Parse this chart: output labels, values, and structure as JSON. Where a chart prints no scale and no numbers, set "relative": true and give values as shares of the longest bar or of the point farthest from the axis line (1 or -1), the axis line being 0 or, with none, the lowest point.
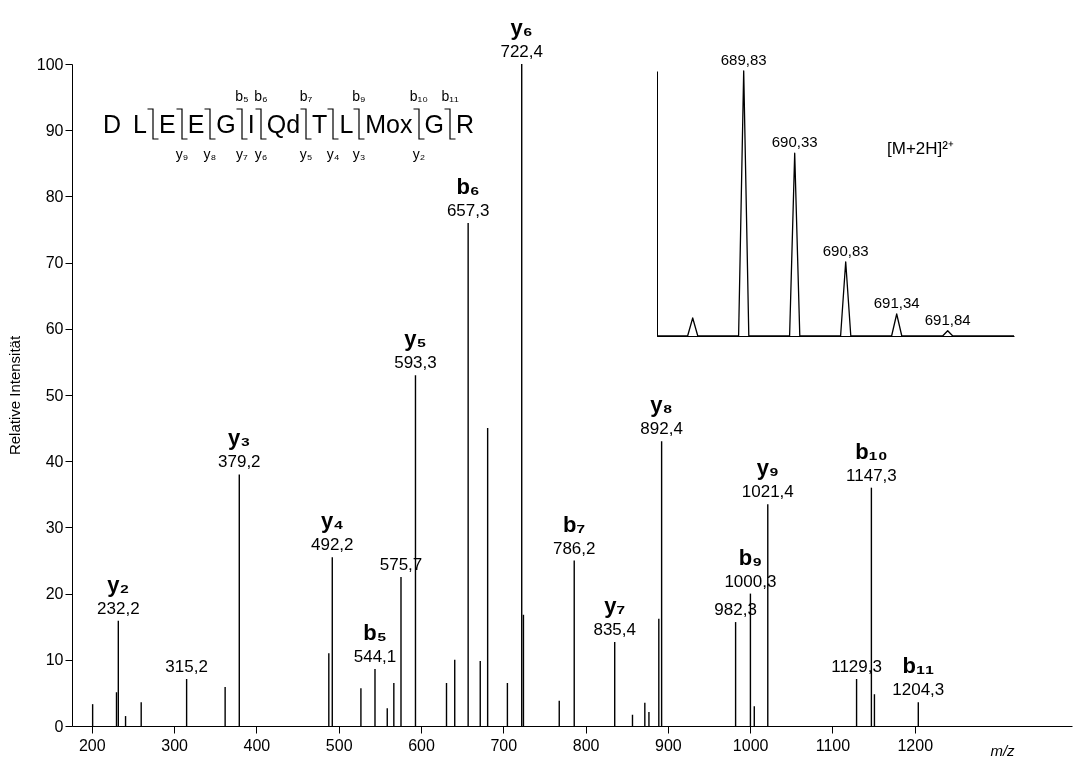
{
  "chart_data": [
    {
      "type": "bar",
      "ylabel": "Relative Intensität",
      "xlabel": "m/z",
      "xlim": [
        182,
        1385
      ],
      "xticks": [
        200,
        300,
        400,
        500,
        600,
        700,
        800,
        900,
        1000,
        1100,
        1200
      ],
      "ylim": [
        0,
        100
      ],
      "yticks": [
        0,
        10,
        20,
        30,
        40,
        50,
        60,
        70,
        80,
        90,
        100
      ],
      "grid": false,
      "legend": false,
      "x": [
        201,
        230,
        232.2,
        241,
        260,
        315.2,
        362,
        379.2,
        488,
        492.2,
        527,
        544.1,
        559,
        567,
        575.7,
        593.3,
        631,
        641,
        657.3,
        672,
        681,
        705,
        722.4,
        724.5,
        768,
        786.2,
        835.4,
        857,
        872,
        877,
        889,
        892.4,
        982.3,
        1000.3,
        1005,
        1021.4,
        1129.3,
        1147.3,
        1151,
        1204.3
      ],
      "series": [
        {
          "color": "#000000",
          "values": [
            3.3,
            5.1,
            15.9,
            1.5,
            3.6,
            7.1,
            5.9,
            38,
            11,
            25.5,
            5.7,
            8.6,
            2.7,
            6.5,
            22.5,
            53,
            6.5,
            10,
            76,
            9.8,
            45,
            6.5,
            100,
            16.8,
            3.8,
            25,
            12.7,
            1.7,
            3.5,
            2.1,
            16.2,
            43,
            15.7,
            20,
            3,
            33.5,
            7.1,
            36,
            4.8,
            3.6
          ]
        }
      ],
      "annotations": [
        "D L E E G I Qd T L Mox G R",
        "b₅",
        "b₆",
        "b₇",
        "b₉",
        "b₁₀",
        "b₁₁",
        "y₉",
        "y₈",
        "y₇",
        "y₆",
        "y₅",
        "y₄",
        "y₃",
        "y₂",
        {
          "text": "y₂",
          "x": 232.2,
          "y": 15.9
        },
        {
          "text": "232,2",
          "x": 232.2,
          "y": 15.9
        },
        {
          "text": "315,2",
          "x": 315.2,
          "y": 7.1
        },
        {
          "text": "y₃",
          "x": 379.2,
          "y": 38
        },
        {
          "text": "379,2",
          "x": 379.2,
          "y": 38
        },
        {
          "text": "y₄",
          "x": 492.2,
          "y": 25.5
        },
        {
          "text": "492,2",
          "x": 492.2,
          "y": 25.5
        },
        {
          "text": "b₅",
          "x": 544.1,
          "y": 8.6
        },
        {
          "text": "544,1",
          "x": 544.1,
          "y": 8.6
        },
        {
          "text": "575,7",
          "x": 575.7,
          "y": 22.5
        },
        {
          "text": "y₅",
          "x": 593.3,
          "y": 53
        },
        {
          "text": "593,3",
          "x": 593.3,
          "y": 53
        },
        {
          "text": "b₆",
          "x": 657.3,
          "y": 76
        },
        {
          "text": "657,3",
          "x": 657.3,
          "y": 76
        },
        {
          "text": "y₆",
          "x": 722.4,
          "y": 100
        },
        {
          "text": "722,4",
          "x": 722.4,
          "y": 100
        },
        {
          "text": "b₇",
          "x": 786.2,
          "y": 25
        },
        {
          "text": "786,2",
          "x": 786.2,
          "y": 25
        },
        {
          "text": "y₇",
          "x": 835.4,
          "y": 12.7
        },
        {
          "text": "835,4",
          "x": 835.4,
          "y": 12.7
        },
        {
          "text": "y₈",
          "x": 892.4,
          "y": 43
        },
        {
          "text": "892,4",
          "x": 892.4,
          "y": 43
        },
        {
          "text": "982,3",
          "x": 982.3,
          "y": 15.7
        },
        {
          "text": "b₉",
          "x": 1000.3,
          "y": 20
        },
        {
          "text": "1000,3",
          "x": 1000.3,
          "y": 20
        },
        {
          "text": "y₉",
          "x": 1021.4,
          "y": 33.5
        },
        {
          "text": "1021,4",
          "x": 1021.4,
          "y": 33.5
        },
        {
          "text": "1129,3",
          "x": 1129.3,
          "y": 7.1
        },
        {
          "text": "b₁₀",
          "x": 1147.3,
          "y": 36
        },
        {
          "text": "1147,3",
          "x": 1147.3,
          "y": 36
        },
        {
          "text": "b₁₁",
          "x": 1204.3,
          "y": 3.6
        },
        {
          "text": "1204,3",
          "x": 1204.3,
          "y": 3.6
        }
      ]
    },
    {
      "type": "line",
      "relative": true,
      "legend": false,
      "categories": [
        null,
        null,
        null,
        null,
        null,
        null,
        null,
        null,
        null,
        null,
        null,
        null,
        null,
        null,
        null,
        null,
        null,
        null,
        null,
        null,
        null,
        null,
        null,
        null,
        null,
        null,
        null,
        null,
        null,
        null,
        null,
        null,
        null,
        null,
        null,
        null,
        null,
        null,
        null,
        null,
        null,
        null,
        null,
        null,
        null,
        null,
        null,
        null,
        null,
        null,
        null,
        null,
        null,
        null,
        null,
        null,
        null,
        null,
        null,
        null,
        null,
        null,
        null,
        null,
        null,
        null,
        null,
        null,
        null,
        null,
        null
      ],
      "series": [
        {
          "color": "#000000",
          "values": [
            0,
            0,
            0,
            0,
            0,
            0,
            0,
            0.068,
            0,
            0,
            0,
            0,
            0,
            0,
            0,
            0,
            0,
            1,
            0,
            0,
            0,
            0,
            0,
            0,
            0,
            0,
            0,
            0.69,
            0,
            0,
            0,
            0,
            0,
            0,
            0,
            0,
            0,
            0.28,
            0,
            0,
            0,
            0,
            0,
            0,
            0,
            0,
            0,
            0.083,
            0,
            0,
            0,
            0,
            0,
            0,
            0,
            0,
            0,
            0.02,
            0,
            0,
            0,
            0,
            0,
            0,
            0,
            0,
            0,
            0,
            0,
            0,
            0
          ]
        }
      ],
      "annotations": [
        "[M+2H]²⁺",
        {
          "text": "689,83",
          "y": 1
        },
        {
          "text": "690,33",
          "y": 0.69
        },
        {
          "text": "690,83",
          "y": 0.28
        },
        {
          "text": "691,34",
          "y": 0.083
        },
        {
          "text": "691,84",
          "y": 0.02
        }
      ]
    }
  ]
}
